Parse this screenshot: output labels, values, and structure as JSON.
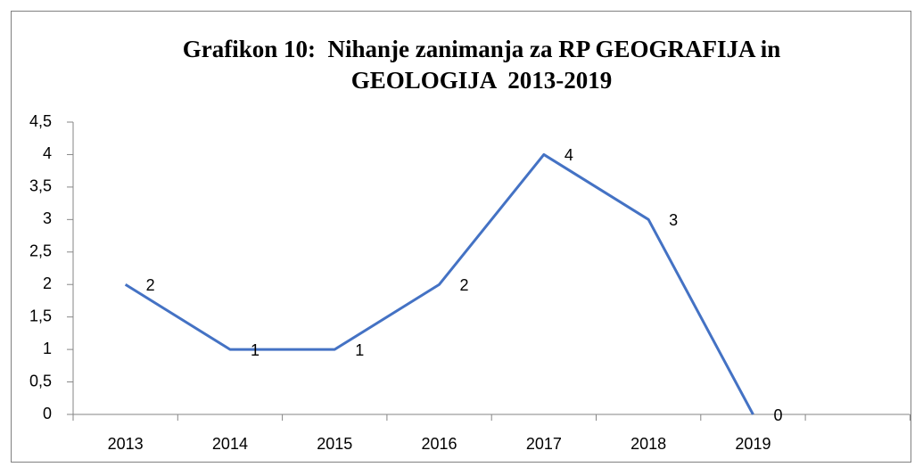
{
  "chart_data": {
    "type": "line",
    "title": "Grafikon 10:  Nihanje zanimanja za RP GEOGRAFIJA in GEOLOGIJA  2013-2019",
    "categories": [
      "2013",
      "2014",
      "2015",
      "2016",
      "2017",
      "2018",
      "2019",
      null
    ],
    "series": [
      {
        "name": null,
        "color": "#4472c4",
        "values": [
          2,
          1,
          1,
          2,
          4,
          3,
          0,
          null
        ]
      }
    ],
    "ylim": [
      0,
      4.5
    ],
    "yticks": [
      0,
      {
        "value": 0.5,
        "label": "0,5"
      },
      1,
      {
        "value": 1.5,
        "label": "1,5"
      },
      2,
      {
        "value": 2.5,
        "label": "2,5"
      },
      3,
      {
        "value": 3.5,
        "label": "3,5"
      },
      4,
      {
        "value": 4.5,
        "label": "4,5"
      }
    ],
    "grid": false,
    "data_labels": true
  }
}
